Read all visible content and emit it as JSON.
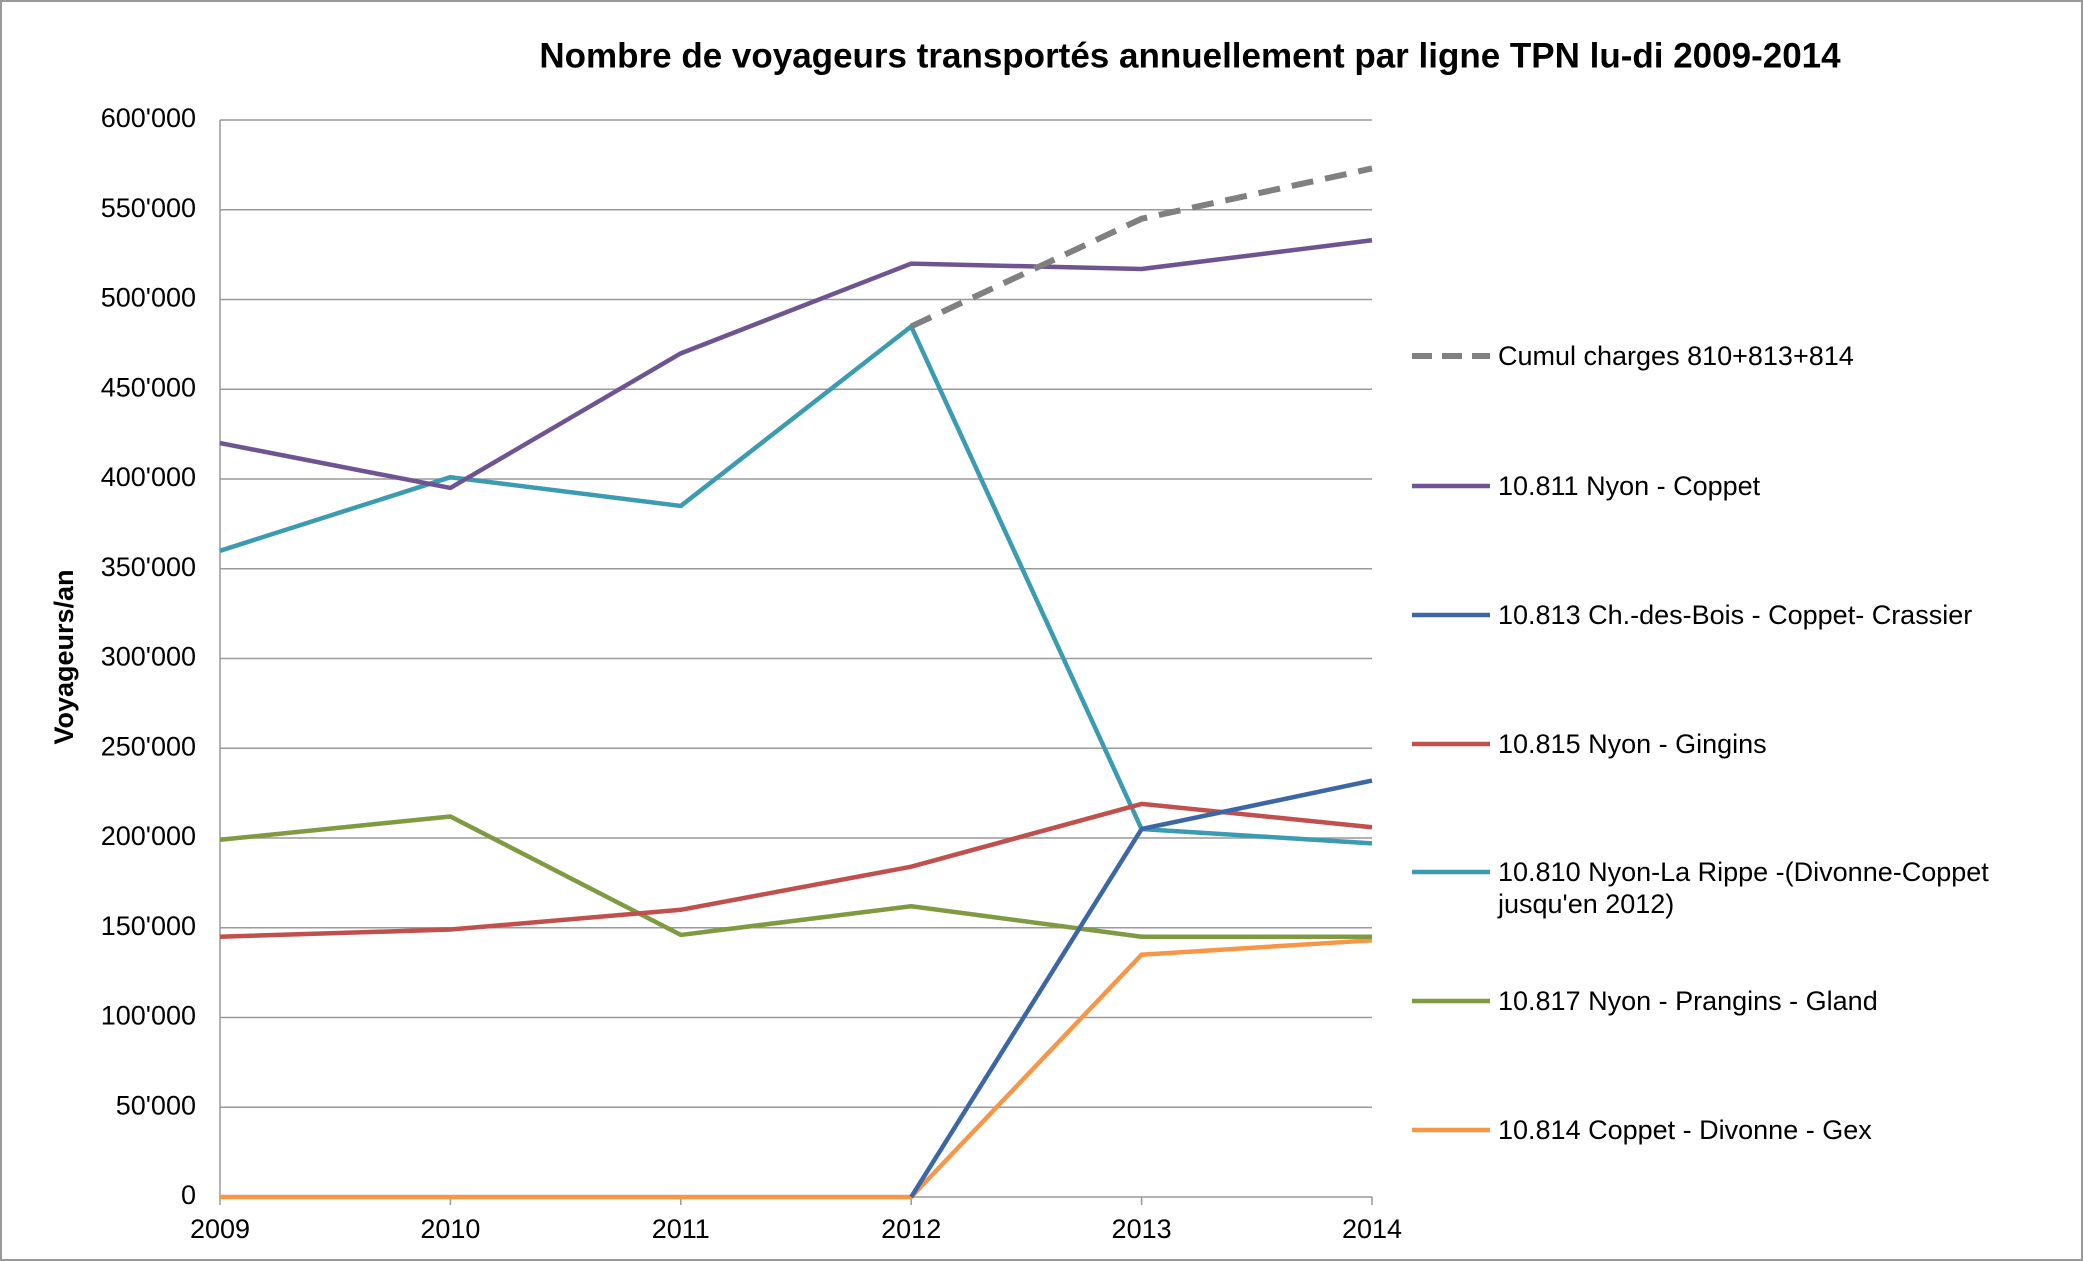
{
  "chart_data": {
    "type": "line",
    "title": "Nombre de voyageurs transportés annuellement par ligne TPN lu-di 2009-2014",
    "y_label": "Voyageurs/an",
    "x": [
      2009,
      2010,
      2011,
      2012,
      2013,
      2014
    ],
    "xlim": [
      2009,
      2014
    ],
    "xticks": [
      2009,
      2010,
      2011,
      2012,
      2013,
      2014
    ],
    "ylim": [
      0,
      600000
    ],
    "yticks": [
      0,
      {
        "value": 50000,
        "label": "50'000"
      },
      {
        "value": 100000,
        "label": "100'000"
      },
      {
        "value": 150000,
        "label": "150'000"
      },
      {
        "value": 200000,
        "label": "200'000"
      },
      {
        "value": 250000,
        "label": "250'000"
      },
      {
        "value": 300000,
        "label": "300'000"
      },
      {
        "value": 350000,
        "label": "350'000"
      },
      {
        "value": 400000,
        "label": "400'000"
      },
      {
        "value": 450000,
        "label": "450'000"
      },
      {
        "value": 500000,
        "label": "500'000"
      },
      {
        "value": 550000,
        "label": "550'000"
      },
      {
        "value": 600000,
        "label": "600'000"
      }
    ],
    "grid": true,
    "legend": "right",
    "series": [
      {
        "name": "Cumul charges 810+813+814",
        "color": "#808080",
        "dashed": true,
        "values": [
          null,
          null,
          null,
          485000,
          545000,
          573000
        ]
      },
      {
        "name": "10.811 Nyon - Coppet",
        "color": "#6e5592",
        "values": [
          420000,
          395000,
          470000,
          520000,
          517000,
          533000
        ]
      },
      {
        "name": "10.813 Ch.-des-Bois - Coppet- Crassier",
        "color": "#3c67a4",
        "values": [
          null,
          null,
          null,
          0,
          205000,
          232000
        ]
      },
      {
        "name": "10.815 Nyon - Gingins",
        "color": "#c0504d",
        "values": [
          145000,
          149000,
          160000,
          184000,
          219000,
          206000
        ]
      },
      {
        "name": "10.810 Nyon-La Rippe -(Divonne-Coppet jusqu'en 2012)",
        "color": "#3b9bb0",
        "values": [
          360000,
          401000,
          385000,
          485000,
          205000,
          197000
        ]
      },
      {
        "name": "10.817 Nyon - Prangins - Gland",
        "color": "#7f9a40",
        "values": [
          199000,
          212000,
          146000,
          162000,
          145000,
          145000
        ]
      },
      {
        "name": "10.814 Coppet - Divonne - Gex",
        "color": "#f79646",
        "values": [
          0,
          0,
          0,
          0,
          135000,
          143000
        ]
      }
    ]
  }
}
